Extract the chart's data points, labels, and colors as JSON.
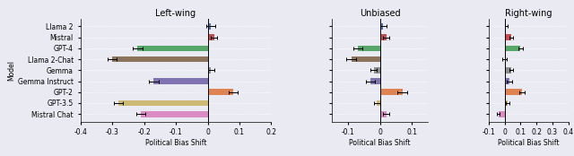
{
  "models": [
    "Llama 2",
    "Mistral",
    "GPT-4",
    "Llama 2-Chat",
    "Gemma",
    "Gemma Instruct",
    "GPT-2",
    "GPT-3.5",
    "Mistral Chat"
  ],
  "colors": [
    "#4c72b0",
    "#c44e52",
    "#55a868",
    "#8c735b",
    "#8d8d8d",
    "#8172b2",
    "#dd8452",
    "#ccb974",
    "#da8bc3"
  ],
  "bg_color": "#eaeaf2",
  "panels": [
    {
      "title": "Left-wing",
      "xlim": [
        -0.4,
        0.2
      ],
      "xticks": [
        -0.4,
        -0.3,
        -0.2,
        -0.1,
        0.0,
        0.1,
        0.2
      ],
      "xtick_labels": [
        "-0.4",
        "-0.3",
        "-0.2",
        "-0.1",
        "0",
        "0.1",
        "0.2"
      ],
      "values": [
        0.01,
        0.02,
        -0.22,
        -0.3,
        0.01,
        -0.17,
        0.08,
        -0.28,
        -0.21
      ],
      "errors": [
        0.015,
        0.01,
        0.015,
        0.015,
        0.01,
        0.015,
        0.015,
        0.015,
        0.015
      ]
    },
    {
      "title": "Unbiased",
      "xlim": [
        -0.15,
        0.15
      ],
      "xticks": [
        -0.1,
        0.0,
        0.1
      ],
      "xtick_labels": [
        "-0.1",
        "0",
        "0.1"
      ],
      "values": [
        0.01,
        0.02,
        -0.07,
        -0.09,
        -0.02,
        -0.03,
        0.07,
        -0.01,
        0.02
      ],
      "errors": [
        0.01,
        0.01,
        0.015,
        0.015,
        0.01,
        0.015,
        0.015,
        0.01,
        0.01
      ]
    },
    {
      "title": "Right-wing",
      "xlim": [
        -0.05,
        0.2
      ],
      "xticks": [
        -0.1,
        0.0,
        0.1,
        0.2,
        0.3,
        0.4
      ],
      "xtick_labels": [
        "-0.1",
        "0",
        "0.1",
        "0.2",
        "0.3",
        "0.4"
      ],
      "values": [
        0.01,
        0.04,
        0.1,
        0.0,
        0.04,
        0.03,
        0.11,
        0.02,
        -0.04
      ],
      "errors": [
        0.01,
        0.01,
        0.015,
        0.015,
        0.01,
        0.015,
        0.015,
        0.01,
        0.01
      ]
    }
  ],
  "ylabel": "Model",
  "xlabel": "Political Bias Shift",
  "title_fontsize": 7,
  "label_fontsize": 5.5,
  "tick_fontsize": 5.5,
  "bar_height": 0.55
}
